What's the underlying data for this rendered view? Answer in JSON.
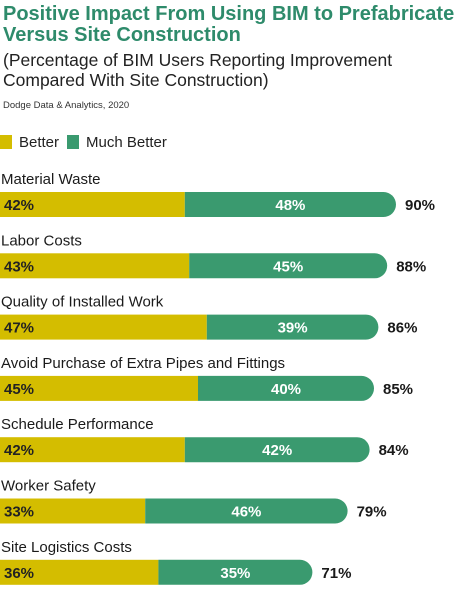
{
  "title": "Positive Impact From Using BIM to Prefabricate Versus Site Construction",
  "subtitle": "(Percentage of BIM Users Reporting Improvement Compared With Site Construction)",
  "source": "Dodge Data & Analytics, 2020",
  "colors": {
    "better": "#d4bd00",
    "much_better": "#3a9a6f",
    "title": "#2e8b6b"
  },
  "legend": {
    "better": "Better",
    "much_better": "Much Better"
  },
  "chart_data": {
    "type": "bar",
    "orientation": "horizontal",
    "stacked": true,
    "categories": [
      "Material Waste",
      "Labor Costs",
      "Quality of Installed Work",
      "Avoid Purchase of Extra Pipes and Fittings",
      "Schedule Performance",
      "Worker Safety",
      "Site Logistics Costs"
    ],
    "series": [
      {
        "name": "Better",
        "values": [
          42,
          43,
          47,
          45,
          42,
          33,
          36
        ]
      },
      {
        "name": "Much Better",
        "values": [
          48,
          45,
          39,
          40,
          42,
          46,
          35
        ]
      }
    ],
    "totals": [
      90,
      88,
      86,
      85,
      84,
      79,
      71
    ],
    "value_labels": [
      {
        "better": "42%",
        "much_better": "48%",
        "total": "90%"
      },
      {
        "better": "43%",
        "much_better": "45%",
        "total": "88%"
      },
      {
        "better": "47%",
        "much_better": "39%",
        "total": "86%"
      },
      {
        "better": "45%",
        "much_better": "40%",
        "total": "85%"
      },
      {
        "better": "42%",
        "much_better": "42%",
        "total": "84%"
      },
      {
        "better": "33%",
        "much_better": "46%",
        "total": "79%"
      },
      {
        "better": "36%",
        "much_better": "35%",
        "total": "71%"
      }
    ],
    "legend_position": "top-left",
    "grid": false
  }
}
